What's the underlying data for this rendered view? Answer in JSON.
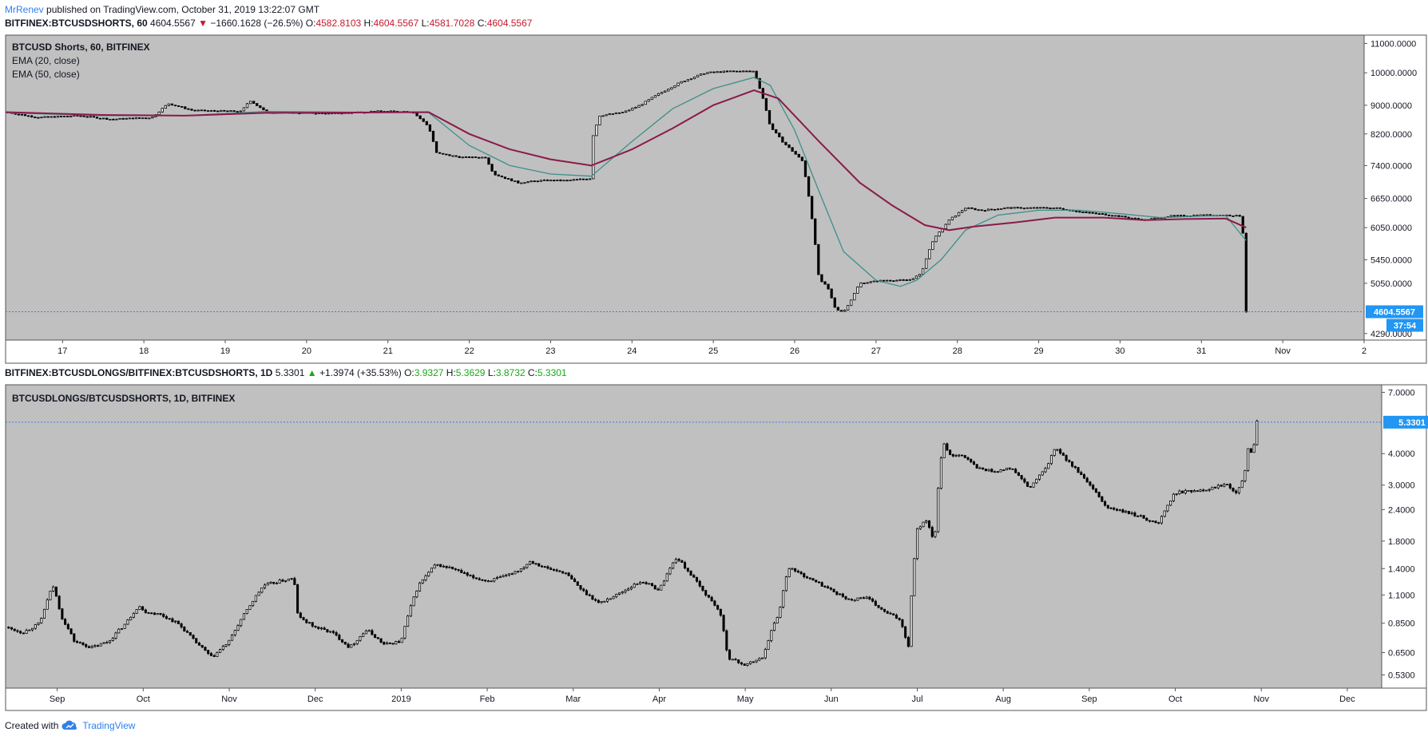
{
  "header": {
    "author": "MrRenev",
    "published_text": "published on TradingView.com, October 31, 2019 13:22:07 GMT"
  },
  "pane1": {
    "symbol": "BITFINEX:BTCUSDSHORTS, 60",
    "last": "4604.5567",
    "change": "−1660.1628 (−26.5%)",
    "o_label": "O:",
    "o": "4582.8103",
    "h_label": "H:",
    "h": "4604.5567",
    "l_label": "L:",
    "l": "4581.7028",
    "c_label": "C:",
    "c": "4604.5567",
    "legend_title": "BTCUSD Shorts, 60, BITFINEX",
    "legend_ema20": "EMA (20, close)",
    "legend_ema50": "EMA (50, close)",
    "price_tag": "4604.5567",
    "countdown": "37:54"
  },
  "pane2": {
    "symbol": "BITFINEX:BTCUSDLONGS/BITFINEX:BTCUSDSHORTS, 1D",
    "last": "5.3301",
    "change": "+1.3974 (+35.53%)",
    "o_label": "O:",
    "o": "3.9327",
    "h_label": "H:",
    "h": "5.3629",
    "l_label": "L:",
    "l": "3.8732",
    "c_label": "C:",
    "c": "5.3301",
    "legend_title": "BTCUSDLONGS/BTCUSDSHORTS, 1D, BITFINEX",
    "price_tag": "5.3301"
  },
  "footer": {
    "created_with": "Created with",
    "brand": "TradingView"
  },
  "colors": {
    "plot_bg": "#c0c0c0",
    "candle": "#000000",
    "candle_up_fill": "#ffffff",
    "candle_down_fill": "#000000",
    "ema20": "#3d8f8a",
    "ema50": "#8b1a4a",
    "price_line": "#2f80ed",
    "tag_bg": "#2196f3"
  },
  "chart_data": [
    {
      "type": "candlestick",
      "title": "BTCUSD Shorts, 60, BITFINEX",
      "scale": "log",
      "y_ticks": [
        11000,
        10000,
        9000,
        8200,
        7400,
        6650,
        6050,
        5450,
        5050,
        4290
      ],
      "y_tick_labels": [
        "11000.0000",
        "10000.0000",
        "9000.0000",
        "8200.0000",
        "7400.0000",
        "6650.0000",
        "6050.0000",
        "5450.0000",
        "5050.0000",
        "4290.0000"
      ],
      "ylim": [
        4200,
        11300
      ],
      "x_tick_labels": [
        "17",
        "18",
        "19",
        "20",
        "21",
        "22",
        "23",
        "24",
        "25",
        "26",
        "27",
        "28",
        "29",
        "30",
        "31",
        "Nov",
        "2"
      ],
      "xlim": [
        16.3,
        33.0
      ],
      "price_series": [
        [
          16.3,
          8800
        ],
        [
          16.7,
          8650
        ],
        [
          17.2,
          8700
        ],
        [
          17.6,
          8600
        ],
        [
          18.1,
          8650
        ],
        [
          18.3,
          9050
        ],
        [
          18.6,
          8850
        ],
        [
          19.2,
          8820
        ],
        [
          19.3,
          9150
        ],
        [
          19.5,
          8800
        ],
        [
          19.9,
          8780
        ],
        [
          20.3,
          8760
        ],
        [
          20.8,
          8820
        ],
        [
          21.3,
          8820
        ],
        [
          21.5,
          8400
        ],
        [
          21.6,
          7700
        ],
        [
          21.9,
          7600
        ],
        [
          22.2,
          7600
        ],
        [
          22.3,
          7200
        ],
        [
          22.6,
          7000
        ],
        [
          22.9,
          7050
        ],
        [
          23.2,
          7050
        ],
        [
          23.5,
          7100
        ],
        [
          23.5,
          8000
        ],
        [
          23.6,
          8700
        ],
        [
          23.9,
          8800
        ],
        [
          24.1,
          9000
        ],
        [
          24.3,
          9300
        ],
        [
          24.6,
          9700
        ],
        [
          24.9,
          10000
        ],
        [
          25.2,
          10050
        ],
        [
          25.5,
          10050
        ],
        [
          25.6,
          9300
        ],
        [
          25.7,
          8400
        ],
        [
          25.85,
          8000
        ],
        [
          26.1,
          7500
        ],
        [
          26.2,
          6400
        ],
        [
          26.3,
          5100
        ],
        [
          26.4,
          5000
        ],
        [
          26.5,
          4650
        ],
        [
          26.6,
          4600
        ],
        [
          26.7,
          4800
        ],
        [
          26.8,
          5050
        ],
        [
          27.1,
          5100
        ],
        [
          27.4,
          5100
        ],
        [
          27.55,
          5200
        ],
        [
          27.7,
          5800
        ],
        [
          27.9,
          6200
        ],
        [
          28.1,
          6450
        ],
        [
          28.3,
          6400
        ],
        [
          28.6,
          6450
        ],
        [
          28.9,
          6450
        ],
        [
          29.2,
          6450
        ],
        [
          29.6,
          6350
        ],
        [
          29.9,
          6300
        ],
        [
          30.3,
          6200
        ],
        [
          30.6,
          6280
        ],
        [
          31.0,
          6300
        ],
        [
          31.3,
          6300
        ],
        [
          31.5,
          6280
        ],
        [
          31.55,
          4604.5567
        ]
      ],
      "ema20": [
        [
          16.3,
          8780
        ],
        [
          17.5,
          8700
        ],
        [
          18.5,
          8700
        ],
        [
          19.5,
          8820
        ],
        [
          20.5,
          8800
        ],
        [
          21.5,
          8790
        ],
        [
          22.0,
          7900
        ],
        [
          22.5,
          7400
        ],
        [
          23.0,
          7200
        ],
        [
          23.5,
          7150
        ],
        [
          24.0,
          8000
        ],
        [
          24.5,
          8900
        ],
        [
          25.0,
          9500
        ],
        [
          25.5,
          9850
        ],
        [
          25.7,
          9600
        ],
        [
          26.0,
          8300
        ],
        [
          26.3,
          6800
        ],
        [
          26.6,
          5600
        ],
        [
          27.0,
          5100
        ],
        [
          27.3,
          5000
        ],
        [
          27.5,
          5100
        ],
        [
          27.8,
          5450
        ],
        [
          28.1,
          6000
        ],
        [
          28.5,
          6300
        ],
        [
          29.0,
          6400
        ],
        [
          29.5,
          6400
        ],
        [
          30.0,
          6330
        ],
        [
          30.5,
          6250
        ],
        [
          31.0,
          6280
        ],
        [
          31.3,
          6290
        ],
        [
          31.55,
          5800
        ]
      ],
      "ema50": [
        [
          16.3,
          8800
        ],
        [
          17.5,
          8720
        ],
        [
          18.5,
          8700
        ],
        [
          19.5,
          8780
        ],
        [
          20.5,
          8790
        ],
        [
          21.5,
          8800
        ],
        [
          22.0,
          8200
        ],
        [
          22.5,
          7800
        ],
        [
          23.0,
          7550
        ],
        [
          23.5,
          7400
        ],
        [
          24.0,
          7800
        ],
        [
          24.5,
          8350
        ],
        [
          25.0,
          9000
        ],
        [
          25.5,
          9450
        ],
        [
          25.8,
          9200
        ],
        [
          26.3,
          8000
        ],
        [
          26.8,
          7000
        ],
        [
          27.2,
          6500
        ],
        [
          27.6,
          6100
        ],
        [
          27.9,
          6000
        ],
        [
          28.2,
          6070
        ],
        [
          28.7,
          6150
        ],
        [
          29.2,
          6250
        ],
        [
          29.8,
          6250
        ],
        [
          30.3,
          6200
        ],
        [
          30.8,
          6220
        ],
        [
          31.3,
          6230
        ],
        [
          31.55,
          6050
        ]
      ],
      "last_price": 4604.5567
    },
    {
      "type": "candlestick",
      "title": "BTCUSDLONGS/BTCUSDSHORTS, 1D, BITFINEX",
      "scale": "log",
      "y_ticks": [
        7.0,
        4.0,
        3.0,
        2.4,
        1.8,
        1.4,
        1.1,
        0.85,
        0.65,
        0.53
      ],
      "y_tick_labels": [
        "7.0000",
        "4.0000",
        "3.0000",
        "2.4000",
        "1.8000",
        "1.4000",
        "1.1000",
        "0.8500",
        "0.6500",
        "0.5300"
      ],
      "ylim": [
        0.47,
        7.5
      ],
      "x_tick_labels": [
        "Sep",
        "Oct",
        "Nov",
        "Dec",
        "2019",
        "Feb",
        "Mar",
        "Apr",
        "May",
        "Jun",
        "Jul",
        "Aug",
        "Sep",
        "Oct",
        "Nov",
        "Dec"
      ],
      "x_tick_months": [
        0,
        1,
        2,
        3,
        4,
        5,
        6,
        7,
        8,
        9,
        10,
        11,
        12,
        13,
        14,
        15
      ],
      "xlim": [
        -0.6,
        15.4
      ],
      "price_series": [
        [
          -0.6,
          0.82
        ],
        [
          -0.4,
          0.78
        ],
        [
          -0.2,
          0.85
        ],
        [
          -0.05,
          1.2
        ],
        [
          0.05,
          0.9
        ],
        [
          0.2,
          0.72
        ],
        [
          0.4,
          0.68
        ],
        [
          0.6,
          0.72
        ],
        [
          0.8,
          0.85
        ],
        [
          0.95,
          1.0
        ],
        [
          1.0,
          0.95
        ],
        [
          1.2,
          0.92
        ],
        [
          1.4,
          0.85
        ],
        [
          1.6,
          0.72
        ],
        [
          1.8,
          0.62
        ],
        [
          2.0,
          0.72
        ],
        [
          2.2,
          0.95
        ],
        [
          2.4,
          1.2
        ],
        [
          2.6,
          1.25
        ],
        [
          2.75,
          1.28
        ],
        [
          2.8,
          0.9
        ],
        [
          3.0,
          0.82
        ],
        [
          3.2,
          0.78
        ],
        [
          3.4,
          0.68
        ],
        [
          3.6,
          0.8
        ],
        [
          3.8,
          0.7
        ],
        [
          4.0,
          0.72
        ],
        [
          4.2,
          1.2
        ],
        [
          4.4,
          1.45
        ],
        [
          4.6,
          1.4
        ],
        [
          4.8,
          1.3
        ],
        [
          5.0,
          1.25
        ],
        [
          5.2,
          1.3
        ],
        [
          5.4,
          1.4
        ],
        [
          5.5,
          1.5
        ],
        [
          5.7,
          1.4
        ],
        [
          5.9,
          1.35
        ],
        [
          6.1,
          1.15
        ],
        [
          6.3,
          1.02
        ],
        [
          6.5,
          1.1
        ],
        [
          6.8,
          1.25
        ],
        [
          7.0,
          1.15
        ],
        [
          7.2,
          1.55
        ],
        [
          7.5,
          1.15
        ],
        [
          7.7,
          0.95
        ],
        [
          7.8,
          0.62
        ],
        [
          8.0,
          0.58
        ],
        [
          8.2,
          0.62
        ],
        [
          8.4,
          0.95
        ],
        [
          8.5,
          1.42
        ],
        [
          8.7,
          1.3
        ],
        [
          9.0,
          1.15
        ],
        [
          9.2,
          1.05
        ],
        [
          9.4,
          1.08
        ],
        [
          9.6,
          0.95
        ],
        [
          9.8,
          0.88
        ],
        [
          9.9,
          0.68
        ],
        [
          10.0,
          2.0
        ],
        [
          10.1,
          2.2
        ],
        [
          10.2,
          1.75
        ],
        [
          10.3,
          4.4
        ],
        [
          10.4,
          3.9
        ],
        [
          10.5,
          4.0
        ],
        [
          10.7,
          3.5
        ],
        [
          10.9,
          3.4
        ],
        [
          11.1,
          3.5
        ],
        [
          11.3,
          2.9
        ],
        [
          11.5,
          3.5
        ],
        [
          11.6,
          4.2
        ],
        [
          11.8,
          3.6
        ],
        [
          12.0,
          3.0
        ],
        [
          12.2,
          2.45
        ],
        [
          12.4,
          2.35
        ],
        [
          12.6,
          2.25
        ],
        [
          12.8,
          2.1
        ],
        [
          13.0,
          2.8
        ],
        [
          13.2,
          2.85
        ],
        [
          13.4,
          2.9
        ],
        [
          13.6,
          3.05
        ],
        [
          13.7,
          2.8
        ],
        [
          13.8,
          3.2
        ],
        [
          13.85,
          4.3
        ],
        [
          13.9,
          3.95
        ],
        [
          13.95,
          5.33
        ]
      ],
      "last_price": 5.3301
    }
  ]
}
